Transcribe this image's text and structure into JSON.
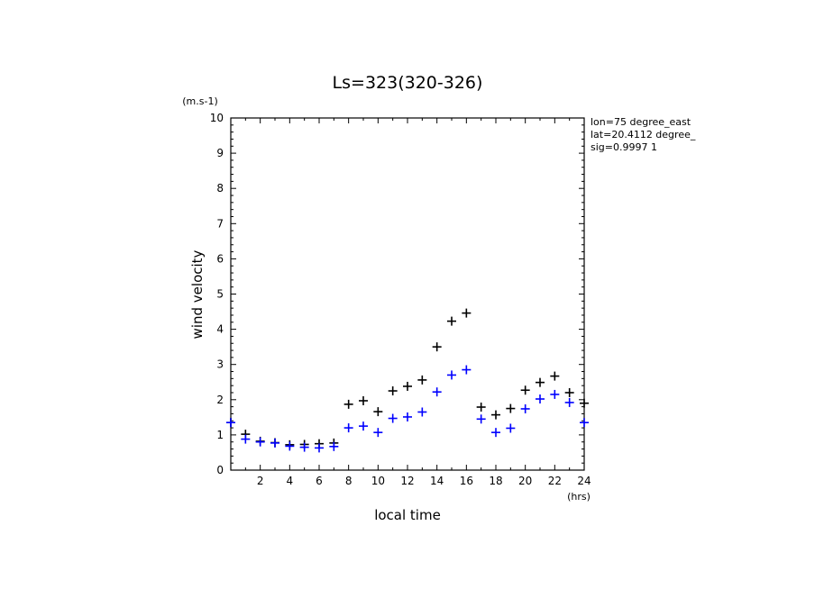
{
  "chart_data": {
    "type": "scatter",
    "title": "Ls=323(320-326)",
    "xlabel": "local time",
    "ylabel": "wind velocity",
    "xunit": "(hrs)",
    "yunit": "(m.s-1)",
    "xlim": [
      0,
      24
    ],
    "ylim": [
      0,
      10
    ],
    "x_ticks": [
      2,
      4,
      6,
      8,
      10,
      12,
      14,
      16,
      18,
      20,
      22,
      24
    ],
    "y_ticks": [
      0,
      1,
      2,
      3,
      4,
      5,
      6,
      7,
      8,
      9,
      10
    ],
    "annotations": [
      "lon=75 degree_east",
      "lat=20.4112 degree_",
      "sig=0.9997 1"
    ],
    "grid": false,
    "series": [
      {
        "color": "#000000",
        "x": [
          0,
          1,
          2,
          3,
          4,
          5,
          6,
          7,
          8,
          9,
          10,
          11,
          12,
          13,
          14,
          15,
          16,
          17,
          18,
          19,
          20,
          21,
          22,
          23,
          24
        ],
        "values": [
          1.35,
          1.02,
          0.82,
          0.78,
          0.72,
          0.73,
          0.75,
          0.77,
          1.87,
          1.97,
          1.66,
          2.25,
          2.38,
          2.56,
          3.5,
          4.23,
          4.46,
          1.79,
          1.57,
          1.75,
          2.27,
          2.49,
          2.67,
          2.2,
          1.9
        ]
      },
      {
        "color": "#0000ff",
        "x": [
          0,
          1,
          2,
          3,
          4,
          5,
          6,
          7,
          8,
          9,
          10,
          11,
          12,
          13,
          14,
          15,
          16,
          17,
          18,
          19,
          20,
          21,
          22,
          23,
          24
        ],
        "values": [
          1.35,
          0.88,
          0.8,
          0.77,
          0.68,
          0.65,
          0.63,
          0.67,
          1.2,
          1.25,
          1.07,
          1.47,
          1.51,
          1.65,
          2.22,
          2.7,
          2.85,
          1.45,
          1.07,
          1.19,
          1.74,
          2.02,
          2.15,
          1.92,
          1.35
        ]
      }
    ]
  }
}
